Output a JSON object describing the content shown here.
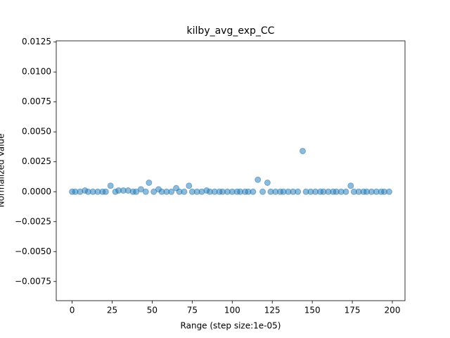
{
  "chart_data": {
    "type": "scatter",
    "title": "kilby_avg_exp_CC",
    "x_label": "Range (step size:1e-05)",
    "y_label": "Normalized Value",
    "series": [
      {
        "color": "#1f77b4",
        "x": [
          0,
          2,
          5,
          8,
          10,
          13,
          16,
          19,
          21,
          24,
          27,
          29,
          32,
          35,
          38,
          40,
          43,
          46,
          48,
          51,
          54,
          56,
          59,
          62,
          65,
          67,
          70,
          73,
          75,
          78,
          81,
          84,
          86,
          89,
          92,
          94,
          97,
          100,
          103,
          105,
          108,
          110,
          113,
          116,
          119,
          122,
          124,
          127,
          130,
          132,
          135,
          138,
          141,
          144,
          146,
          149,
          152,
          155,
          157,
          160,
          163,
          165,
          168,
          171,
          174,
          176,
          179,
          182,
          184,
          187,
          190,
          193,
          195,
          198
        ],
        "values": [
          0,
          0,
          0,
          0.0001,
          0,
          0,
          0,
          0,
          0,
          0.0005,
          0,
          0.0001,
          0.0001,
          0.0001,
          0,
          0,
          0.0002,
          0,
          0.00075,
          0,
          0.0002,
          0,
          0,
          0,
          0.0003,
          0,
          0,
          0.0005,
          0,
          0,
          0,
          0.0001,
          0,
          0,
          0,
          0,
          0,
          0,
          0,
          0,
          0,
          0,
          0,
          0.001,
          0,
          0.00075,
          0,
          0,
          0,
          0,
          0,
          0,
          0,
          0.0034,
          0,
          0,
          0,
          0,
          0,
          0,
          0,
          0,
          0,
          0,
          0.0005,
          0,
          0,
          0,
          0,
          0,
          0,
          0,
          0,
          0
        ]
      }
    ],
    "xlim": [
      -9.9,
      207.9
    ],
    "xticks": [
      0,
      25,
      50,
      75,
      100,
      125,
      150,
      175,
      200
    ],
    "ylim": [
      -0.0091,
      0.0126
    ],
    "yticks": [
      {
        "value": -0.0075,
        "label": "−0.0075"
      },
      {
        "value": -0.005,
        "label": "−0.0050"
      },
      {
        "value": -0.0025,
        "label": "−0.0025"
      },
      {
        "value": 0,
        "label": "0.0000"
      },
      {
        "value": 0.0025,
        "label": "0.0025"
      },
      {
        "value": 0.005,
        "label": "0.0050"
      },
      {
        "value": 0.0075,
        "label": "0.0075"
      },
      {
        "value": 0.01,
        "label": "0.0100"
      },
      {
        "value": 0.0125,
        "label": "0.0125"
      }
    ],
    "alpha": 0.5
  }
}
